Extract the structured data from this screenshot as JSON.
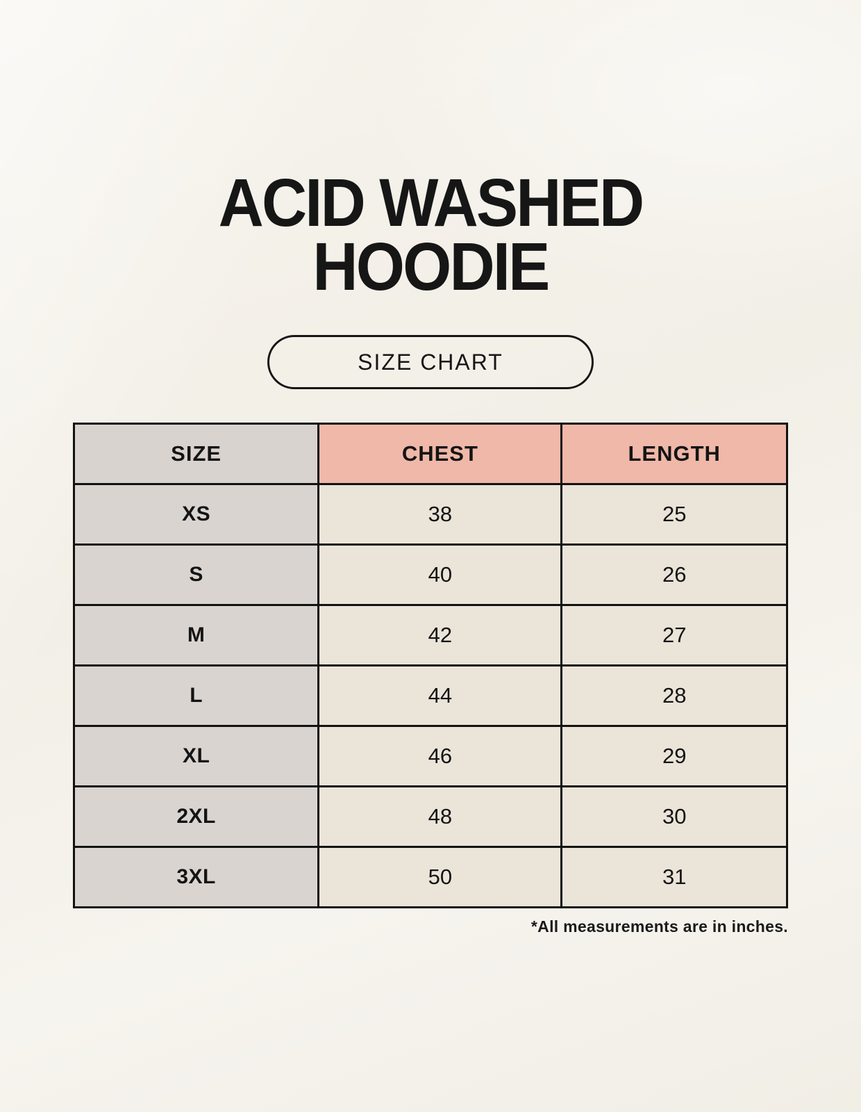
{
  "colors": {
    "page_background": "#f4f1e9",
    "border": "#121212",
    "header_size_bg": "#d8d3cf",
    "header_measure_bg": "#efb8a8",
    "size_column_bg": "#dad4d0",
    "value_cell_bg": "#eae4d9",
    "text": "#161616"
  },
  "header": {
    "title_line1": "ACID WASHED",
    "title_line2": "HOODIE",
    "size_chart_label": "SIZE CHART"
  },
  "table": {
    "columns": [
      "SIZE",
      "CHEST",
      "LENGTH"
    ],
    "rows": [
      {
        "size": "XS",
        "chest": "38",
        "length": "25"
      },
      {
        "size": "S",
        "chest": "40",
        "length": "26"
      },
      {
        "size": "M",
        "chest": "42",
        "length": "27"
      },
      {
        "size": "L",
        "chest": "44",
        "length": "28"
      },
      {
        "size": "XL",
        "chest": "46",
        "length": "29"
      },
      {
        "size": "2XL",
        "chest": "48",
        "length": "30"
      },
      {
        "size": "3XL",
        "chest": "50",
        "length": "31"
      }
    ],
    "footnote": "*All measurements are in inches."
  },
  "chart_data": {
    "type": "table",
    "title": "ACID WASHED HOODIE",
    "subtitle": "SIZE CHART",
    "columns": [
      "SIZE",
      "CHEST",
      "LENGTH"
    ],
    "rows": [
      [
        "XS",
        38,
        25
      ],
      [
        "S",
        40,
        26
      ],
      [
        "M",
        42,
        27
      ],
      [
        "L",
        44,
        28
      ],
      [
        "XL",
        46,
        29
      ],
      [
        "2XL",
        48,
        30
      ],
      [
        "3XL",
        50,
        31
      ]
    ],
    "units": "inches",
    "annotations": [
      "*All measurements are in inches."
    ]
  }
}
